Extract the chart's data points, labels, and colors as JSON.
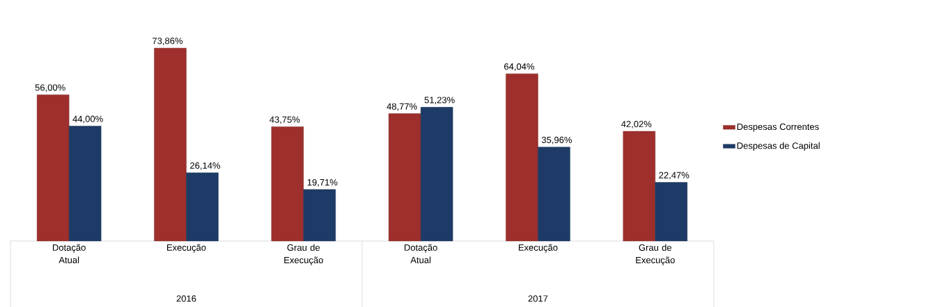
{
  "chart_data": {
    "type": "bar",
    "categories": [
      "Dotação Atual",
      "Execução",
      "Grau de Execução",
      "Dotação Atual",
      "Execução",
      "Grau de Execução"
    ],
    "series": [
      {
        "name": "Despesas Correntes",
        "color": "#9e2f2c",
        "values": [
          56.0,
          73.86,
          43.75,
          48.77,
          64.04,
          42.02
        ],
        "value_labels": [
          "56,00%",
          "73,86%",
          "43,75%",
          "48,77%",
          "64,04%",
          "42,02%"
        ]
      },
      {
        "name": "Despesas de Capital",
        "color": "#1d3b66",
        "values": [
          44.0,
          26.14,
          19.71,
          51.23,
          35.96,
          22.47
        ],
        "value_labels": [
          "44,00%",
          "26,14%",
          "19,71%",
          "51,23%",
          "35,96%",
          "22,47%"
        ]
      }
    ],
    "annotations": [
      "2016",
      "2017"
    ],
    "legend": "right"
  }
}
